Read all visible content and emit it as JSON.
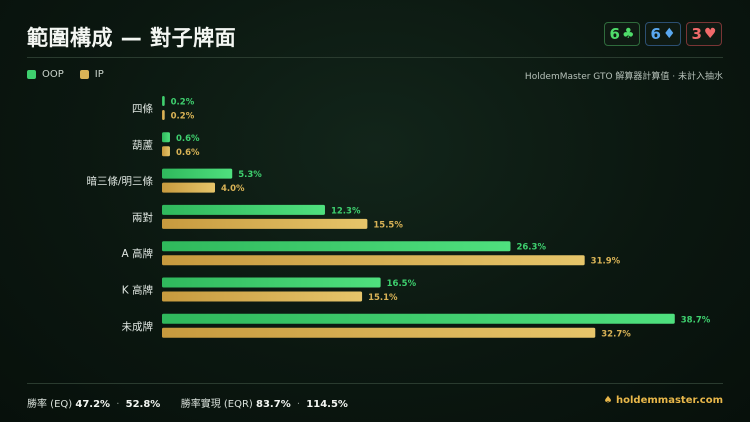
{
  "header": {
    "title": "範圍構成 — 對子牌面",
    "board": [
      {
        "rank": "6",
        "suit": "♣",
        "suit_name": "club-icon"
      },
      {
        "rank": "6",
        "suit": "♦",
        "suit_name": "diamond-icon"
      },
      {
        "rank": "3",
        "suit": "♥",
        "suit_name": "heart-icon"
      }
    ]
  },
  "legend": {
    "oop": "OOP",
    "ip": "IP",
    "note": "HoldemMaster GTO 解算器計算值 · 未計入抽水"
  },
  "colors": {
    "oop": "#3ecf6e",
    "ip": "#d9b356"
  },
  "chart_data": {
    "type": "bar",
    "orientation": "horizontal",
    "categories": [
      "四條",
      "葫蘆",
      "暗三條/明三條",
      "兩對",
      "A 高牌",
      "K 高牌",
      "未成牌"
    ],
    "series": [
      {
        "name": "OOP",
        "values": [
          0.2,
          0.6,
          5.3,
          12.3,
          26.3,
          16.5,
          38.7
        ]
      },
      {
        "name": "IP",
        "values": [
          0.2,
          0.6,
          4.0,
          15.5,
          31.9,
          15.1,
          32.7
        ]
      }
    ],
    "unit": "%",
    "xlim": [
      0,
      40
    ],
    "grid": false,
    "legend_position": "top-left"
  },
  "footer": {
    "eq_label": "勝率 (EQ)",
    "eq_oop": "47.2%",
    "eq_sep": "·",
    "eq_ip": "52.8%",
    "eqr_label": "勝率實現 (EQR)",
    "eqr_oop": "83.7%",
    "eqr_sep": "·",
    "eqr_ip": "114.5%",
    "brand": "holdemmaster.com"
  }
}
